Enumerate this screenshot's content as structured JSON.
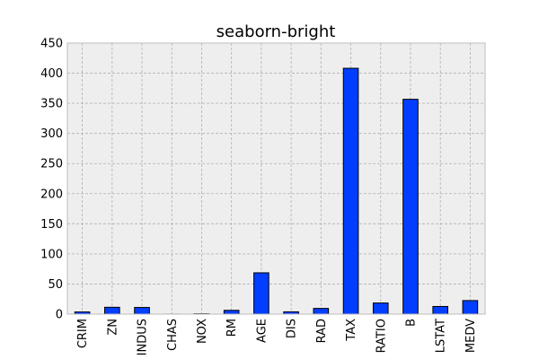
{
  "chart_data": {
    "type": "bar",
    "title": "seaborn-bright",
    "xlabel": "",
    "ylabel": "",
    "categories": [
      "CRIM",
      "ZN",
      "INDUS",
      "CHAS",
      "NOX",
      "RM",
      "AGE",
      "DIS",
      "RAD",
      "TAX",
      "RATIO",
      "B",
      "LSTAT",
      "MEDV"
    ],
    "values": [
      3.6,
      11.4,
      11.1,
      0.07,
      0.55,
      6.3,
      68.6,
      3.8,
      9.5,
      408.2,
      18.5,
      356.7,
      12.7,
      22.5
    ],
    "ylim": [
      0,
      450
    ],
    "yticks": [
      0,
      50,
      100,
      150,
      200,
      250,
      300,
      350,
      400,
      450
    ],
    "grid": true,
    "legend": "none",
    "colors": {
      "bar": "#023eff",
      "plot_background": "#eeeeee",
      "grid": "#b0b0b0"
    }
  }
}
